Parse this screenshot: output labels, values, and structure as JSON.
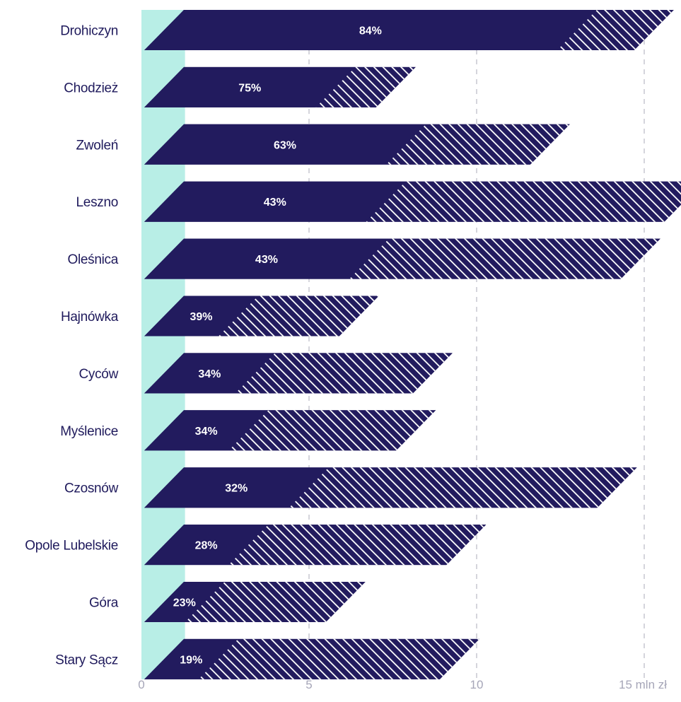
{
  "colors": {
    "bar": "#221b5e",
    "hatch_stripe": "#ffffff",
    "baseline_band": "#b8eee6",
    "grid": "#b9b9c4",
    "category_text": "#1f1a5c",
    "tick_text": "#a6a6b8"
  },
  "chart_data": {
    "type": "bar",
    "orientation": "horizontal",
    "categories": [
      "Drohiczyn",
      "Chodzież",
      "Zwoleń",
      "Leszno",
      "Oleśnica",
      "Hajnówka",
      "Cyców",
      "Myślenice",
      "Czosnów",
      "Opole Lubelskie",
      "Góra",
      "Stary Sącz"
    ],
    "percent_labels": [
      "84%",
      "75%",
      "63%",
      "43%",
      "43%",
      "39%",
      "34%",
      "34%",
      "32%",
      "28%",
      "23%",
      "19%"
    ],
    "series": [
      {
        "style": "solid",
        "values": [
          12.4,
          5.2,
          7.3,
          6.7,
          6.2,
          2.3,
          2.8,
          2.6,
          4.4,
          2.6,
          1.3,
          1.7
        ]
      },
      {
        "style": "hatched",
        "values": [
          2.3,
          1.8,
          4.3,
          8.9,
          8.1,
          3.6,
          5.3,
          5.0,
          9.2,
          6.5,
          4.2,
          7.2
        ]
      }
    ],
    "baseline_band": [
      0,
      1.3
    ],
    "xlim": [
      0,
      15.5
    ],
    "xticks": [
      0,
      5,
      10,
      15
    ],
    "xtick_labels": [
      "0",
      "5",
      "10",
      "15 mln zł"
    ],
    "grid": true,
    "grid_style": "dashed-vertical"
  }
}
